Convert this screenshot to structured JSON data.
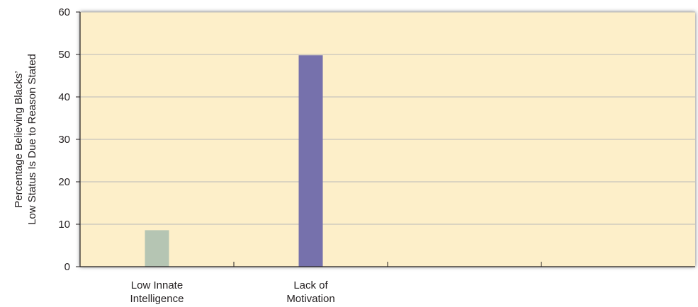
{
  "chart_data": {
    "type": "bar",
    "title": "",
    "xlabel": "",
    "ylabel_lines": [
      "Percentage Believing Blacks’",
      "Low Status Is Due to Reason Stated"
    ],
    "ylim": [
      0,
      60
    ],
    "yticks": [
      0,
      10,
      20,
      30,
      40,
      50,
      60
    ],
    "grid": true,
    "categories": [
      {
        "lines": [
          "Low Innate",
          "Intelligence"
        ]
      },
      {
        "lines": [
          "Lack of",
          "Motivation"
        ]
      },
      {
        "lines": []
      },
      {
        "lines": []
      }
    ],
    "values": [
      8.6,
      49.8,
      null,
      null
    ],
    "colors": [
      "#b5c5b3",
      "#7671ac",
      null,
      null
    ],
    "plot_background": "#fdefc9",
    "grid_color": "#b9b9b9"
  }
}
